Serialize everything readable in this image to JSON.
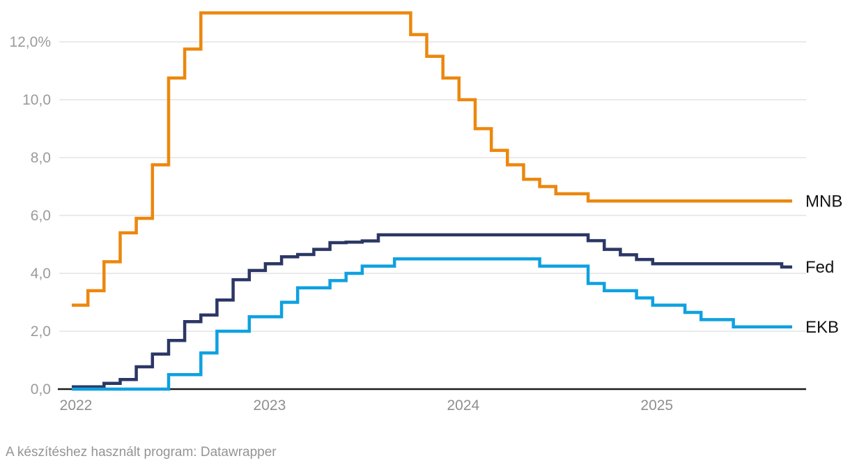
{
  "chart_data": {
    "type": "line",
    "line_style": "step-after",
    "title": "",
    "x_start": "2022-01",
    "interval": "monthly",
    "x_tick_labels": [
      "2022",
      "2023",
      "2024",
      "2025"
    ],
    "y_ticks": [
      {
        "value": 0,
        "label": "0,0"
      },
      {
        "value": 2,
        "label": "2,0"
      },
      {
        "value": 4,
        "label": "4,0"
      },
      {
        "value": 6,
        "label": "6,0"
      },
      {
        "value": 8,
        "label": "8,0"
      },
      {
        "value": 10,
        "label": "10,0"
      },
      {
        "value": 12,
        "label": "12,0%"
      }
    ],
    "ylim": [
      0,
      13.2
    ],
    "grid": "horizontal",
    "legend_position": "inline-right-of-lines",
    "series": [
      {
        "name": "MNB",
        "color": "#EC870E",
        "values": [
          2.9,
          3.4,
          4.4,
          5.4,
          5.9,
          7.75,
          10.75,
          11.75,
          13,
          13,
          13,
          13,
          13,
          13,
          13,
          13,
          13,
          13,
          13,
          13,
          13,
          12.25,
          11.5,
          10.75,
          10,
          9,
          8.25,
          7.75,
          7.25,
          7,
          6.75,
          6.75,
          6.5,
          6.5,
          6.5,
          6.5,
          6.5,
          6.5,
          6.5,
          6.5,
          6.5,
          6.5,
          6.5,
          6.5,
          6.5
        ]
      },
      {
        "name": "Fed",
        "color": "#2B3765",
        "values": [
          0.08,
          0.08,
          0.2,
          0.33,
          0.77,
          1.21,
          1.68,
          2.33,
          2.56,
          3.08,
          3.78,
          4.1,
          4.33,
          4.57,
          4.65,
          4.83,
          5.06,
          5.08,
          5.12,
          5.33,
          5.33,
          5.33,
          5.33,
          5.33,
          5.33,
          5.33,
          5.33,
          5.33,
          5.33,
          5.33,
          5.33,
          5.33,
          5.13,
          4.83,
          4.64,
          4.48,
          4.33,
          4.33,
          4.33,
          4.33,
          4.33,
          4.33,
          4.33,
          4.33,
          4.22
        ]
      },
      {
        "name": "EKB",
        "color": "#0FA1E0",
        "values": [
          0,
          0,
          0,
          0,
          0,
          0,
          0.5,
          0.5,
          1.25,
          2,
          2,
          2.5,
          2.5,
          3,
          3.5,
          3.5,
          3.75,
          4,
          4.25,
          4.25,
          4.5,
          4.5,
          4.5,
          4.5,
          4.5,
          4.5,
          4.5,
          4.5,
          4.5,
          4.25,
          4.25,
          4.25,
          3.65,
          3.4,
          3.4,
          3.15,
          2.9,
          2.9,
          2.65,
          2.4,
          2.4,
          2.15,
          2.15,
          2.15,
          2.15
        ]
      }
    ],
    "axis_color": "#1a1a1a",
    "gridline_color": "#e4e4e4",
    "tick_label_color": "#9b9b9b",
    "series_label_color": "#141414"
  },
  "footer": {
    "credit": "A készítéshez használt program: Datawrapper"
  }
}
